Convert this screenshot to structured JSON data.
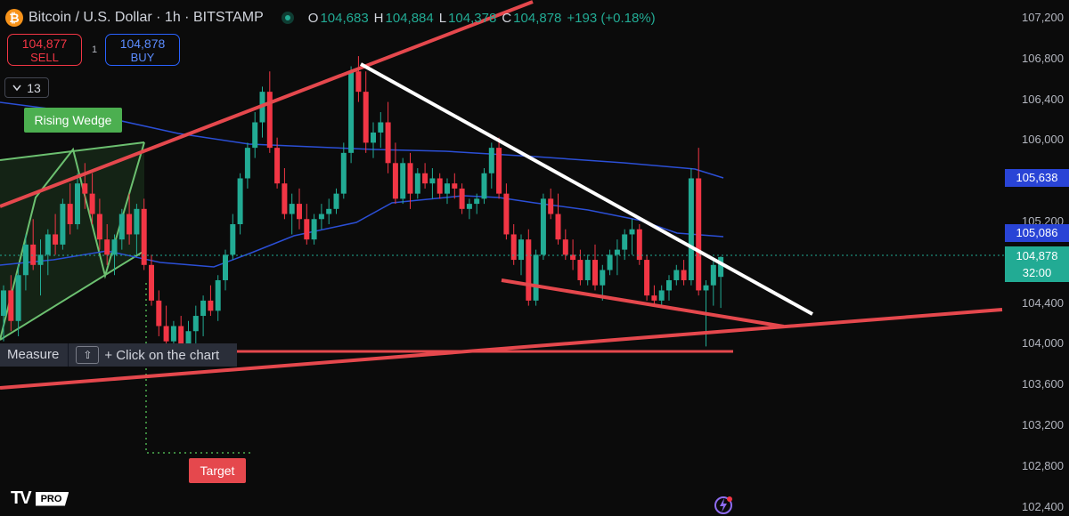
{
  "header": {
    "symbol_title": "Bitcoin / U.S. Dollar · 1h · BITSTAMP",
    "open_label": "O",
    "open": "104,683",
    "high_label": "H",
    "high": "104,884",
    "low_label": "L",
    "low": "104,378",
    "close_label": "C",
    "close": "104,878",
    "change": "+193 (+0.18%)"
  },
  "trade": {
    "sell_price": "104,877",
    "sell_label": "SELL",
    "buy_price": "104,878",
    "buy_label": "BUY",
    "spread": "1"
  },
  "indicators_count": "13",
  "drawings": {
    "pattern_label": "Rising Wedge",
    "target_label": "Target"
  },
  "measure_hint": {
    "tool": "Measure",
    "key": "⇧",
    "text": "+ Click on the chart"
  },
  "price_axis": [
    "107,200",
    "106,800",
    "106,400",
    "106,000",
    "105,600",
    "105,200",
    "104,800",
    "104,400",
    "104,000",
    "103,600",
    "103,200",
    "102,800",
    "102,400"
  ],
  "price_tags": {
    "ma_slow": "105,638",
    "ma_fast": "105,086",
    "last_price": "104,878",
    "countdown": "32:00"
  },
  "branding": {
    "logo_text": "TV",
    "plan": "PRO"
  },
  "colors": {
    "up": "#22ab94",
    "down": "#f23645",
    "trendline": "#e5484d",
    "ma": "#2b4fd6",
    "wedge": "#6cc070"
  },
  "chart_data": {
    "type": "candlestick",
    "ylim": [
      102400,
      107300
    ],
    "candles": [
      [
        104300,
        104600,
        104050,
        104550
      ],
      [
        104550,
        104700,
        104150,
        104250
      ],
      [
        104250,
        104800,
        104100,
        104700
      ],
      [
        104700,
        105100,
        104550,
        105000
      ],
      [
        105000,
        105250,
        104750,
        104800
      ],
      [
        104800,
        105050,
        104500,
        104900
      ],
      [
        104900,
        105150,
        104700,
        105100
      ],
      [
        105100,
        105300,
        104900,
        105000
      ],
      [
        105000,
        105450,
        104950,
        105400
      ],
      [
        105400,
        105600,
        105100,
        105200
      ],
      [
        105200,
        105700,
        105150,
        105600
      ],
      [
        105600,
        105800,
        105350,
        105500
      ],
      [
        105500,
        105700,
        105200,
        105300
      ],
      [
        105300,
        105450,
        104950,
        105050
      ],
      [
        105050,
        105200,
        104800,
        104900
      ],
      [
        104900,
        105100,
        104700,
        105050
      ],
      [
        105050,
        105350,
        104950,
        105300
      ],
      [
        105300,
        105500,
        105000,
        105100
      ],
      [
        105100,
        105400,
        104900,
        105350
      ],
      [
        105350,
        105450,
        104750,
        104800
      ],
      [
        104800,
        104900,
        104400,
        104450
      ],
      [
        104450,
        104550,
        104100,
        104200
      ],
      [
        104200,
        104400,
        104000,
        104050
      ],
      [
        104050,
        104250,
        103900,
        104200
      ],
      [
        104200,
        104300,
        103950,
        104000
      ],
      [
        104000,
        104250,
        103950,
        104150
      ],
      [
        104150,
        104400,
        104000,
        104300
      ],
      [
        104300,
        104500,
        104100,
        104450
      ],
      [
        104450,
        104600,
        104300,
        104350
      ],
      [
        104350,
        104700,
        104250,
        104650
      ],
      [
        104650,
        104950,
        104550,
        104900
      ],
      [
        104900,
        105300,
        104850,
        105200
      ],
      [
        105200,
        105700,
        105100,
        105650
      ],
      [
        105650,
        106000,
        105550,
        105950
      ],
      [
        105950,
        106300,
        105850,
        106200
      ],
      [
        106200,
        106550,
        106050,
        106500
      ],
      [
        106500,
        106700,
        105900,
        105950
      ],
      [
        105950,
        106050,
        105550,
        105600
      ],
      [
        105600,
        105750,
        105250,
        105300
      ],
      [
        105300,
        105500,
        105100,
        105400
      ],
      [
        105400,
        105550,
        105150,
        105250
      ],
      [
        105250,
        105400,
        105000,
        105050
      ],
      [
        105050,
        105300,
        105000,
        105250
      ],
      [
        105250,
        105400,
        105150,
        105300
      ],
      [
        105300,
        105450,
        105200,
        105350
      ],
      [
        105350,
        105550,
        105300,
        105500
      ],
      [
        105500,
        106000,
        105450,
        105900
      ],
      [
        105900,
        106750,
        105800,
        106700
      ],
      [
        106700,
        106850,
        106400,
        106500
      ],
      [
        106500,
        106700,
        105900,
        106000
      ],
      [
        106000,
        106200,
        105850,
        106100
      ],
      [
        106100,
        106300,
        105950,
        106200
      ],
      [
        106200,
        106400,
        105700,
        105800
      ],
      [
        105800,
        106000,
        105400,
        105450
      ],
      [
        105450,
        105850,
        105400,
        105800
      ],
      [
        105800,
        105900,
        105350,
        105500
      ],
      [
        105500,
        105750,
        105450,
        105700
      ],
      [
        105700,
        105800,
        105550,
        105600
      ],
      [
        105600,
        105750,
        105450,
        105650
      ],
      [
        105650,
        105700,
        105450,
        105500
      ],
      [
        105500,
        105650,
        105400,
        105600
      ],
      [
        105600,
        105700,
        105450,
        105550
      ],
      [
        105550,
        105600,
        105300,
        105350
      ],
      [
        105350,
        105450,
        105250,
        105400
      ],
      [
        105400,
        105500,
        105300,
        105450
      ],
      [
        105450,
        105750,
        105400,
        105700
      ],
      [
        105700,
        106000,
        105550,
        105950
      ],
      [
        105950,
        106050,
        105450,
        105500
      ],
      [
        105500,
        105600,
        105050,
        105100
      ],
      [
        105100,
        105200,
        104800,
        104850
      ],
      [
        104850,
        105100,
        104700,
        105050
      ],
      [
        105050,
        105150,
        104400,
        104450
      ],
      [
        104450,
        104950,
        104400,
        104900
      ],
      [
        104900,
        105500,
        104850,
        105450
      ],
      [
        105450,
        105550,
        105250,
        105300
      ],
      [
        105300,
        105500,
        105000,
        105050
      ],
      [
        105050,
        105150,
        104850,
        104900
      ],
      [
        104900,
        105050,
        104750,
        104850
      ],
      [
        104850,
        104950,
        104600,
        104650
      ],
      [
        104650,
        104900,
        104600,
        104850
      ],
      [
        104850,
        105000,
        104550,
        104600
      ],
      [
        104600,
        104800,
        104450,
        104750
      ],
      [
        104750,
        104950,
        104700,
        104900
      ],
      [
        104900,
        105050,
        104700,
        104950
      ],
      [
        104950,
        105150,
        104850,
        105100
      ],
      [
        105100,
        105250,
        104900,
        105150
      ],
      [
        105150,
        105200,
        104800,
        104850
      ],
      [
        104850,
        104900,
        104450,
        104500
      ],
      [
        104500,
        104600,
        104400,
        104450
      ],
      [
        104450,
        104600,
        104400,
        104550
      ],
      [
        104550,
        104700,
        104450,
        104650
      ],
      [
        104650,
        104800,
        104600,
        104750
      ],
      [
        104750,
        104850,
        104600,
        104650
      ],
      [
        104650,
        105750,
        104600,
        105650
      ],
      [
        105650,
        105950,
        104500,
        104550
      ],
      [
        104550,
        104650,
        104000,
        104600
      ],
      [
        104600,
        104850,
        104400,
        104800
      ],
      [
        104683,
        104884,
        104378,
        104878
      ]
    ]
  }
}
